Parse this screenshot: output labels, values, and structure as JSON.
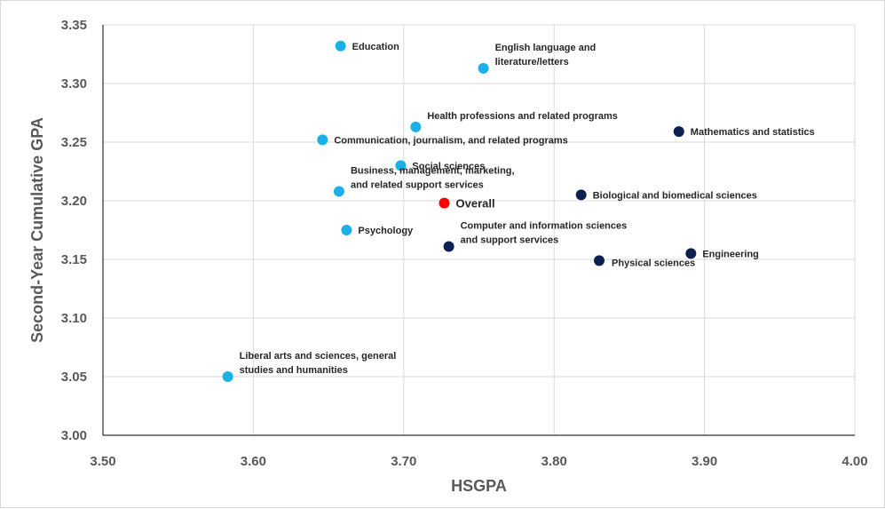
{
  "chart_data": {
    "type": "scatter",
    "title": "",
    "xlabel": "HSGPA",
    "ylabel": "Second-Year Cumulative GPA",
    "xlim": [
      3.5,
      4.0
    ],
    "ylim": [
      3.0,
      3.35
    ],
    "xticks": [
      "3.50",
      "3.60",
      "3.70",
      "3.80",
      "3.90",
      "4.00"
    ],
    "xtick_values": [
      3.5,
      3.6,
      3.7,
      3.8,
      3.9,
      4.0
    ],
    "yticks": [
      "3.00",
      "3.05",
      "3.10",
      "3.15",
      "3.20",
      "3.25",
      "3.30",
      "3.35"
    ],
    "ytick_values": [
      3.0,
      3.05,
      3.1,
      3.15,
      3.2,
      3.25,
      3.3,
      3.35
    ],
    "grid": true,
    "colors": {
      "light": "#1cb0e8",
      "dark": "#0d2150",
      "overall": "#ff0000"
    },
    "points": [
      {
        "id": "education",
        "lines": [
          "Education"
        ],
        "x": 3.658,
        "y": 3.332,
        "group": "light",
        "label_pos": "right"
      },
      {
        "id": "english",
        "lines": [
          "English language and",
          "literature/letters"
        ],
        "x": 3.753,
        "y": 3.313,
        "group": "light",
        "label_pos": "right-up"
      },
      {
        "id": "health",
        "lines": [
          "Health professions and related programs"
        ],
        "x": 3.708,
        "y": 3.263,
        "group": "light",
        "label_pos": "right-up"
      },
      {
        "id": "communication",
        "lines": [
          "Communication, journalism, and related programs"
        ],
        "x": 3.646,
        "y": 3.252,
        "group": "light",
        "label_pos": "right"
      },
      {
        "id": "social",
        "lines": [
          "Social sciences"
        ],
        "x": 3.698,
        "y": 3.23,
        "group": "light",
        "label_pos": "right"
      },
      {
        "id": "business",
        "lines": [
          "Business, management, marketing,",
          "and related support services"
        ],
        "x": 3.657,
        "y": 3.208,
        "group": "light",
        "label_pos": "right-up"
      },
      {
        "id": "psychology",
        "lines": [
          "Psychology"
        ],
        "x": 3.662,
        "y": 3.175,
        "group": "light",
        "label_pos": "right"
      },
      {
        "id": "liberal",
        "lines": [
          "Liberal arts and sciences, general",
          "studies and humanities"
        ],
        "x": 3.583,
        "y": 3.05,
        "group": "light",
        "label_pos": "right-up"
      },
      {
        "id": "overall",
        "lines": [
          "Overall"
        ],
        "x": 3.727,
        "y": 3.198,
        "group": "overall",
        "label_pos": "right",
        "big": true
      },
      {
        "id": "math",
        "lines": [
          "Mathematics and statistics"
        ],
        "x": 3.883,
        "y": 3.259,
        "group": "dark",
        "label_pos": "right"
      },
      {
        "id": "bio",
        "lines": [
          "Biological and biomedical sciences"
        ],
        "x": 3.818,
        "y": 3.205,
        "group": "dark",
        "label_pos": "right"
      },
      {
        "id": "computer",
        "lines": [
          "Computer and information sciences",
          "and support services"
        ],
        "x": 3.73,
        "y": 3.161,
        "group": "dark",
        "label_pos": "right-up"
      },
      {
        "id": "engineering",
        "lines": [
          "Engineering"
        ],
        "x": 3.891,
        "y": 3.155,
        "group": "dark",
        "label_pos": "right"
      },
      {
        "id": "physical",
        "lines": [
          "Physical sciences"
        ],
        "x": 3.83,
        "y": 3.149,
        "group": "dark",
        "label_pos": "right-down"
      }
    ]
  }
}
